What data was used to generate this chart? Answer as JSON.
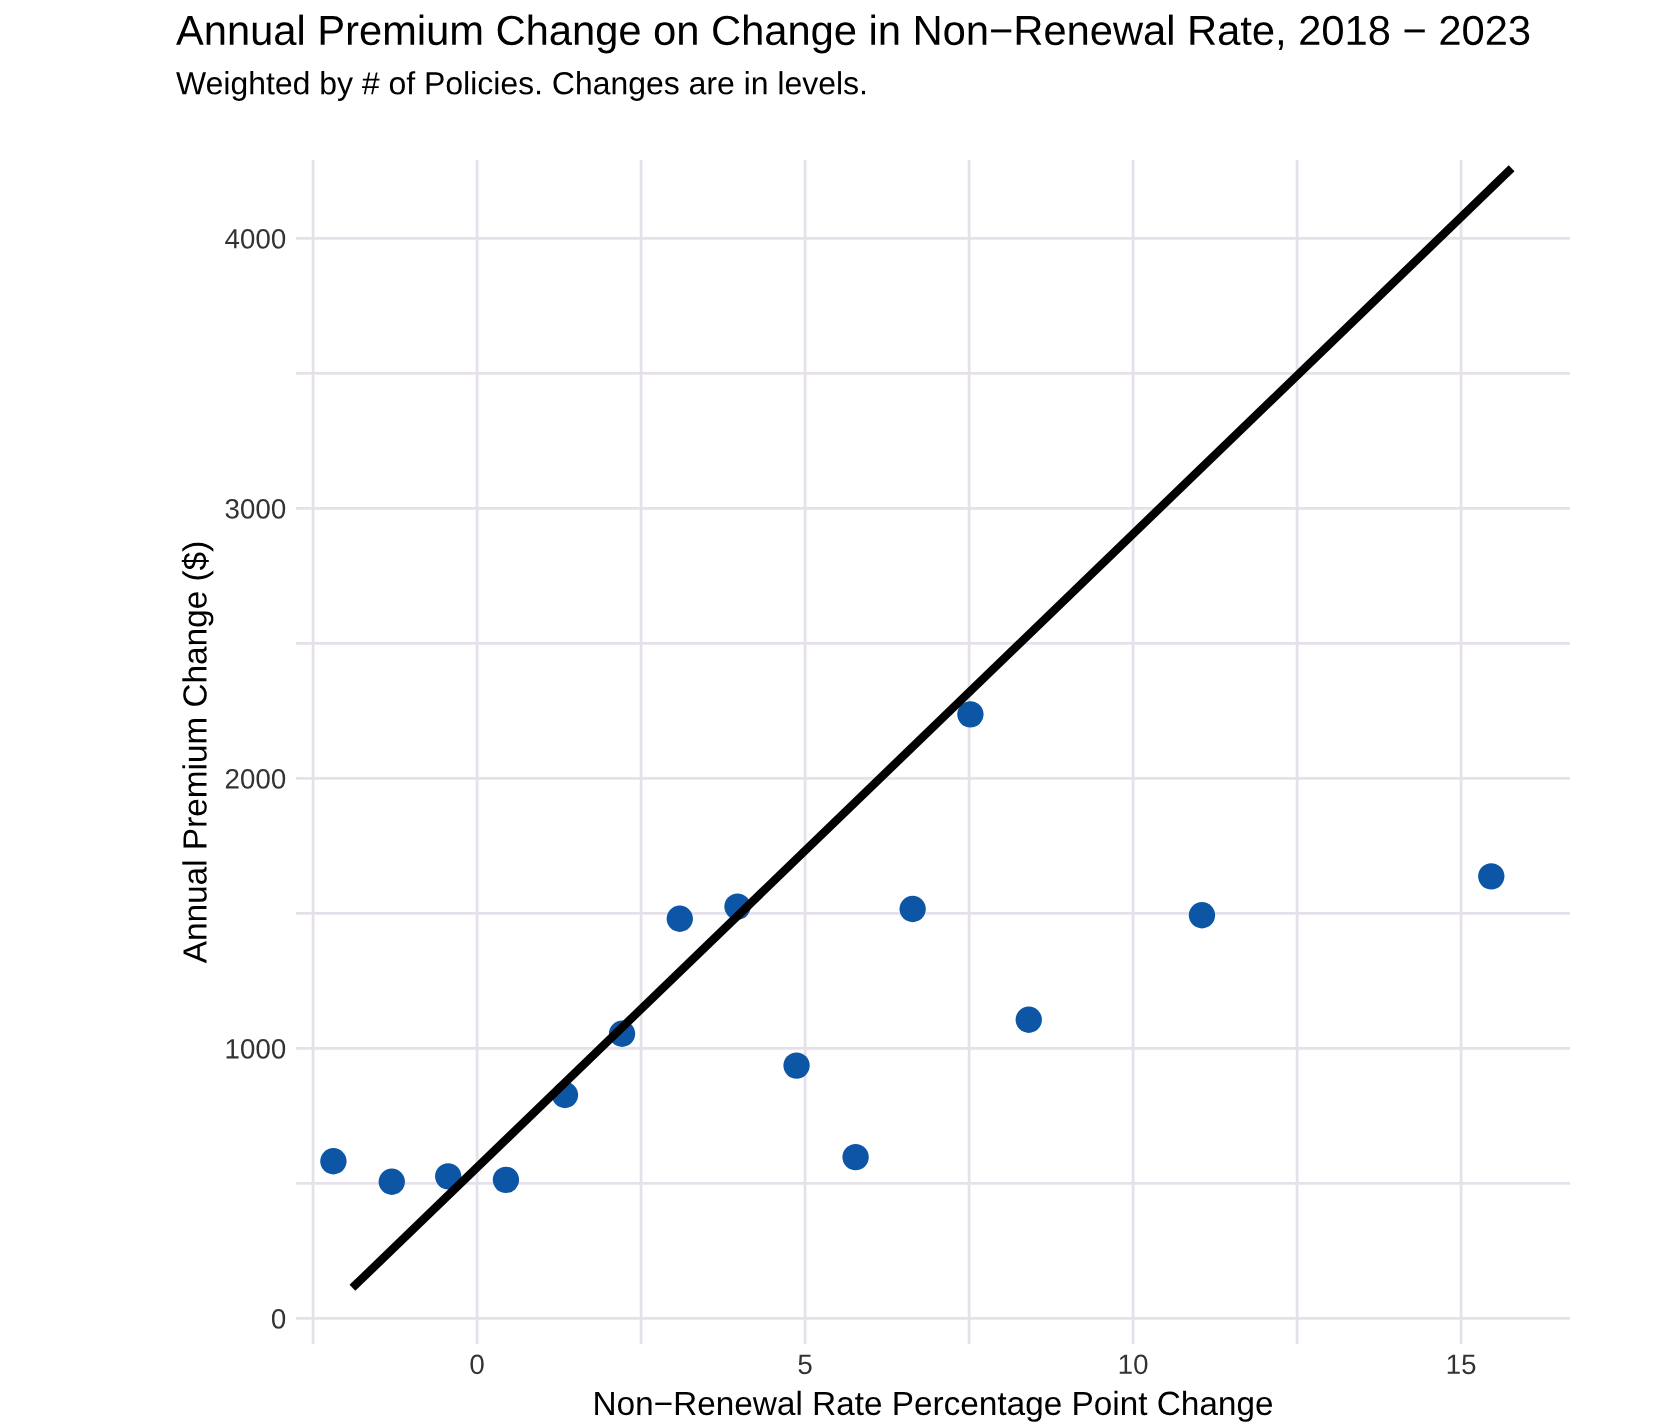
{
  "chart_data": {
    "type": "scatter",
    "title": "Annual Premium Change on Change in Non−Renewal Rate, 2018 − 2023",
    "subtitle": "Weighted by # of Policies. Changes are in levels.",
    "xlabel": "Non−Renewal Rate Percentage Point Change",
    "ylabel": "Annual Premium Change ($)",
    "series": [
      {
        "marker": "circle",
        "color": "#0d56a6",
        "x": [
          -2.19,
          -1.3,
          -0.44,
          0.44,
          1.34,
          2.21,
          3.09,
          3.97,
          4.87,
          5.77,
          6.64,
          7.52,
          8.41,
          11.05,
          15.46
        ],
        "values": [
          582,
          506,
          526,
          513,
          827,
          1054,
          1480,
          1525,
          936,
          597,
          1516,
          2237,
          1106,
          1493,
          1637
        ]
      },
      {
        "type": "line",
        "color": "#000000",
        "x": [
          -1.9,
          15.77
        ],
        "values": [
          113,
          4259
        ]
      }
    ],
    "xlim": [
      -2.76,
      16.66
    ],
    "ylim": [
      -95,
      4290
    ],
    "xticks": [
      {
        "value": -2.5,
        "label": null
      },
      0,
      {
        "value": 2.5,
        "label": null
      },
      5,
      {
        "value": 7.5,
        "label": null
      },
      10,
      {
        "value": 12.5,
        "label": null
      },
      15
    ],
    "yticks": [
      0,
      {
        "value": 500,
        "label": null
      },
      1000,
      {
        "value": 1500,
        "label": null
      },
      2000,
      {
        "value": 2500,
        "label": null
      },
      3000,
      {
        "value": 3500,
        "label": null
      },
      4000
    ],
    "grid": true
  }
}
